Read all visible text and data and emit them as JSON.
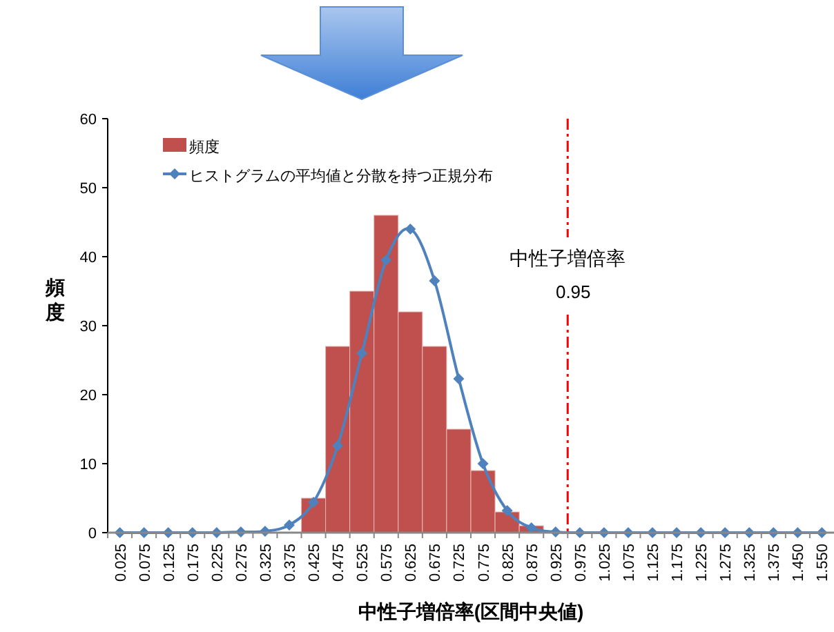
{
  "chart_data": {
    "type": "bar",
    "xlabel": "中性子増倍率(区間中央値)",
    "ylabel": "頻度",
    "categories": [
      "0.025",
      "0.075",
      "0.125",
      "0.175",
      "0.225",
      "0.275",
      "0.325",
      "0.375",
      "0.425",
      "0.475",
      "0.525",
      "0.575",
      "0.625",
      "0.675",
      "0.725",
      "0.775",
      "0.825",
      "0.875",
      "0.925",
      "0.975",
      "1.025",
      "1.075",
      "1.125",
      "1.175",
      "1.225",
      "1.275",
      "1.325",
      "1.375",
      "1.450",
      "1.550"
    ],
    "series": [
      {
        "name": "頻度",
        "color": "#c0504d",
        "values": [
          0,
          0,
          0,
          0,
          0,
          0,
          0,
          0,
          5,
          27,
          35,
          46,
          32,
          27,
          15,
          9,
          3,
          1,
          0,
          0,
          0,
          0,
          0,
          0,
          0,
          0,
          0,
          0,
          0,
          0
        ]
      },
      {
        "name": "ヒストグラムの平均値と分散を持つ正規分布",
        "type": "line",
        "color": "#4f81bd",
        "marker": "diamond",
        "values": [
          0,
          0,
          0,
          0,
          0,
          0.1,
          0.2,
          1.1,
          4.4,
          12.6,
          26,
          39.5,
          44,
          36.5,
          22.3,
          10,
          3.2,
          0.7,
          0.1,
          0,
          0,
          0,
          0,
          0,
          0,
          0,
          0,
          0,
          0,
          0
        ]
      }
    ],
    "ylim": [
      0,
      60
    ],
    "yticks": [
      0,
      10,
      20,
      30,
      40,
      50,
      60
    ],
    "grid": false,
    "legend": "top left",
    "annotations": [
      "中性子増倍率",
      "0.95"
    ]
  }
}
